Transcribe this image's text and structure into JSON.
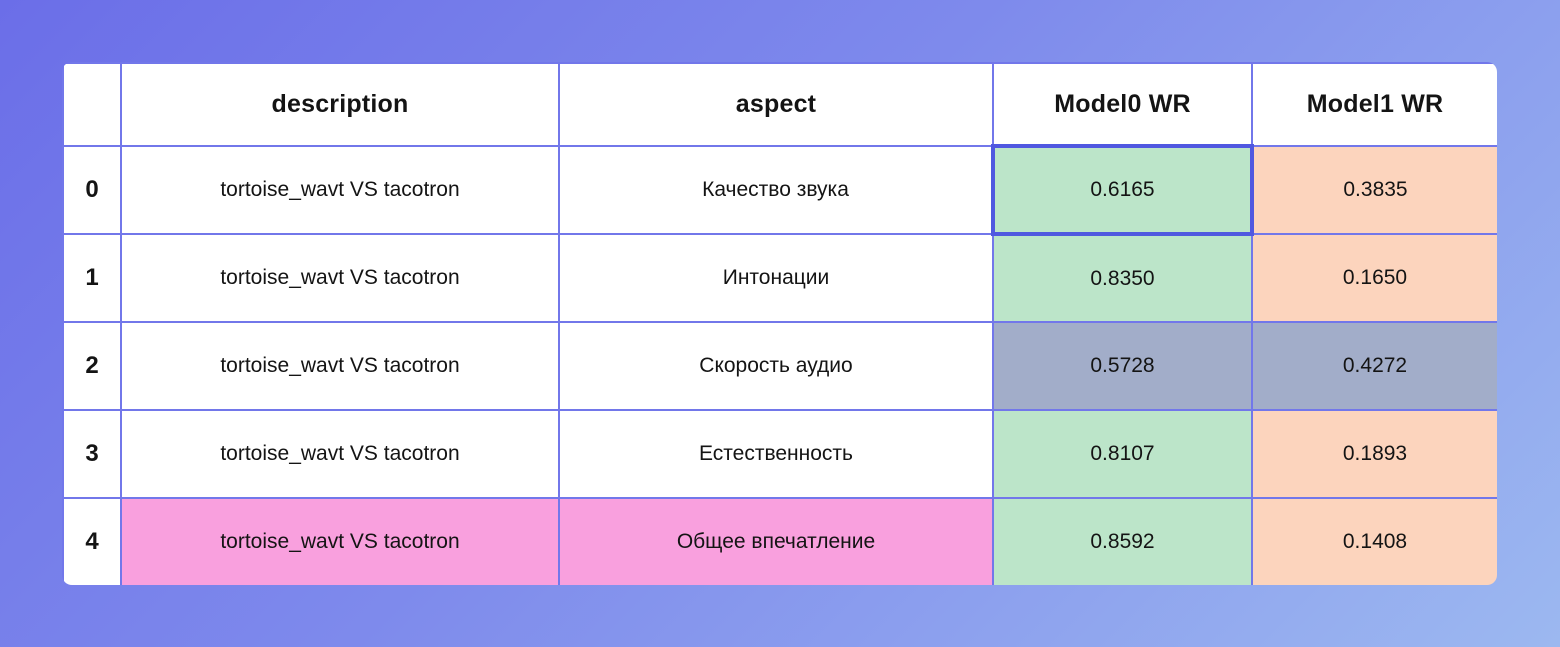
{
  "background": {
    "gradient_start": "#6b6ee8",
    "gradient_end": "#9cb8f0"
  },
  "table": {
    "border_color": "#7277ea",
    "selected_cell_border_color": "#5058e0",
    "selection": {
      "row": 0,
      "column": "model0"
    },
    "colors": {
      "white": "#ffffff",
      "green": "#bce5c9",
      "peach": "#fcd4bd",
      "gray": "#a2adc9",
      "pink": "#f9a0de"
    },
    "header": {
      "index": "",
      "description": "description",
      "aspect": "aspect",
      "model0": "Model0 WR",
      "model1": "Model1 WR"
    },
    "rows": [
      {
        "index": {
          "text": "0",
          "bg": "white"
        },
        "description": {
          "text": "tortoise_wavt VS tacotron",
          "bg": "white"
        },
        "aspect": {
          "text": "Качество звука",
          "bg": "white"
        },
        "model0": {
          "text": "0.6165",
          "bg": "green"
        },
        "model1": {
          "text": "0.3835",
          "bg": "peach"
        }
      },
      {
        "index": {
          "text": "1",
          "bg": "white"
        },
        "description": {
          "text": "tortoise_wavt VS tacotron",
          "bg": "white"
        },
        "aspect": {
          "text": "Интонации",
          "bg": "white"
        },
        "model0": {
          "text": "0.8350",
          "bg": "green"
        },
        "model1": {
          "text": "0.1650",
          "bg": "peach"
        }
      },
      {
        "index": {
          "text": "2",
          "bg": "white"
        },
        "description": {
          "text": "tortoise_wavt VS tacotron",
          "bg": "white"
        },
        "aspect": {
          "text": "Скорость аудио",
          "bg": "white"
        },
        "model0": {
          "text": "0.5728",
          "bg": "gray"
        },
        "model1": {
          "text": "0.4272",
          "bg": "gray"
        }
      },
      {
        "index": {
          "text": "3",
          "bg": "white"
        },
        "description": {
          "text": "tortoise_wavt VS tacotron",
          "bg": "white"
        },
        "aspect": {
          "text": "Естественность",
          "bg": "white"
        },
        "model0": {
          "text": "0.8107",
          "bg": "green"
        },
        "model1": {
          "text": "0.1893",
          "bg": "peach"
        }
      },
      {
        "index": {
          "text": "4",
          "bg": "white"
        },
        "description": {
          "text": "tortoise_wavt VS tacotron",
          "bg": "pink"
        },
        "aspect": {
          "text": "Общее впечатление",
          "bg": "pink"
        },
        "model0": {
          "text": "0.8592",
          "bg": "green"
        },
        "model1": {
          "text": "0.1408",
          "bg": "peach"
        }
      }
    ]
  }
}
